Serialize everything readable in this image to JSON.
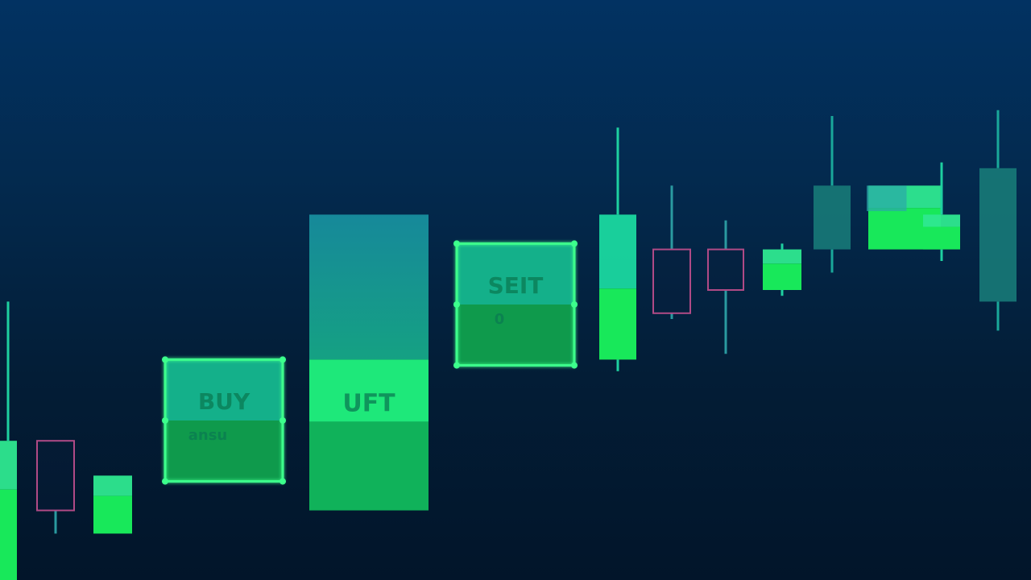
{
  "chart_data": {
    "type": "candlestick",
    "title": "",
    "xlabel": "",
    "ylabel": "",
    "ylim": [
      0,
      100
    ],
    "grid": false,
    "colors": {
      "bull": "#1ee87a",
      "bull_top": "#1aa89a",
      "bear_outline": "#b04a86",
      "glow": "#3cff8c"
    },
    "candles": [
      {
        "style": "bull",
        "open": 0,
        "close": 24,
        "high": 48,
        "low": 0
      },
      {
        "style": "bear",
        "open": 24,
        "close": 12,
        "high": 24,
        "low": 8
      },
      {
        "style": "bull",
        "open": 8,
        "close": 18,
        "high": 18,
        "low": 8
      },
      {
        "style": "box",
        "open": 17,
        "close": 38,
        "high": 38,
        "low": 17,
        "label": "BUY",
        "sublabel": "ansu"
      },
      {
        "style": "box-tall",
        "open": 12,
        "close": 63,
        "high": 63,
        "low": 12,
        "label": "UFT"
      },
      {
        "style": "box",
        "open": 37,
        "close": 58,
        "high": 58,
        "low": 37,
        "label": "SEIT",
        "sublabel": "0"
      },
      {
        "style": "bull-tall",
        "open": 38,
        "close": 63,
        "high": 78,
        "low": 36
      },
      {
        "style": "bear",
        "open": 57,
        "close": 46,
        "high": 68,
        "low": 45
      },
      {
        "style": "bear",
        "open": 57,
        "close": 50,
        "high": 62,
        "low": 39
      },
      {
        "style": "bull",
        "open": 50,
        "close": 57,
        "high": 58,
        "low": 49
      },
      {
        "style": "teal",
        "open": 57,
        "close": 68,
        "high": 80,
        "low": 53
      },
      {
        "style": "bull-wide",
        "open": 57,
        "close": 68,
        "high": 68,
        "low": 57
      },
      {
        "style": "bull",
        "open": 57,
        "close": 63,
        "high": 72,
        "low": 55
      },
      {
        "style": "teal",
        "open": 48,
        "close": 71,
        "high": 81,
        "low": 43
      }
    ]
  }
}
